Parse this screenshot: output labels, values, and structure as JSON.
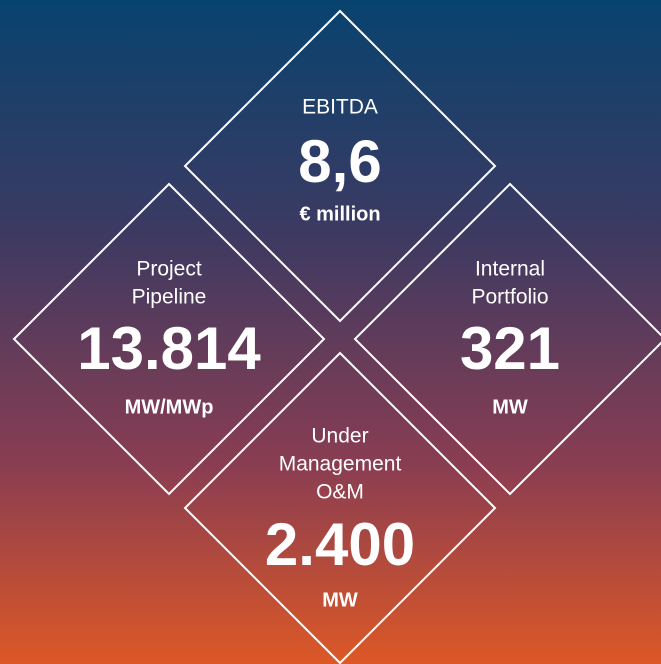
{
  "items": [
    {
      "label": [
        "EBITDA"
      ],
      "value": "8,6",
      "unit": "€ million"
    },
    {
      "label": [
        "Project",
        "Pipeline"
      ],
      "value": "13.814",
      "unit": "MW/MWp"
    },
    {
      "label": [
        "Internal",
        "Portfolio"
      ],
      "value": "321",
      "unit": "MW"
    },
    {
      "label": [
        "Under",
        "Management",
        "O&M"
      ],
      "value": "2.400",
      "unit": "MW"
    }
  ]
}
